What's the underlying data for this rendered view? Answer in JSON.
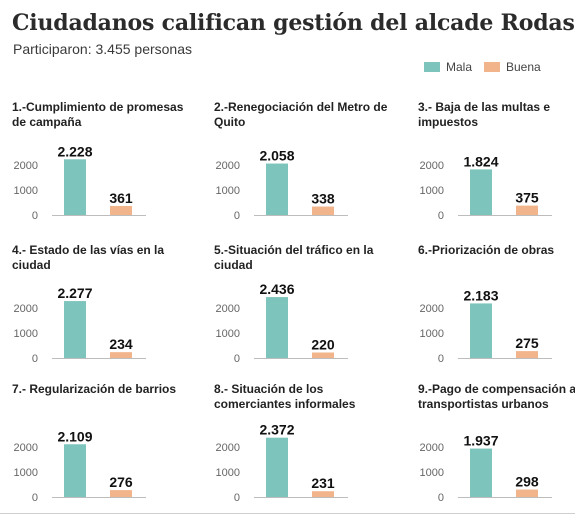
{
  "header": {
    "title": "Ciudadanos califican gestión del alcade Rodas",
    "subtitle": "Participaron: 3.455 personas"
  },
  "legend": [
    {
      "label": "Mala",
      "color": "#7cc4bc"
    },
    {
      "label": "Buena",
      "color": "#f2b48a"
    }
  ],
  "chart_data": {
    "type": "bar",
    "series": [
      {
        "name": "Mala",
        "color": "#7cc4bc"
      },
      {
        "name": "Buena",
        "color": "#f2b48a"
      }
    ],
    "ylim": [
      0,
      2500
    ],
    "yticks": [
      0,
      1000,
      2000
    ],
    "panels": [
      {
        "title": "1.-Cumplimiento de promesas de campaña",
        "values": [
          2228,
          361
        ],
        "labels": [
          "2.228",
          "361"
        ]
      },
      {
        "title": "2.-Renegociación del Metro de Quito",
        "values": [
          2058,
          338
        ],
        "labels": [
          "2.058",
          "338"
        ]
      },
      {
        "title": "3.- Baja de las multas e impuestos",
        "values": [
          1824,
          375
        ],
        "labels": [
          "1.824",
          "375"
        ]
      },
      {
        "title": "4.- Estado de las vías en la ciudad",
        "values": [
          2277,
          234
        ],
        "labels": [
          "2.277",
          "234"
        ]
      },
      {
        "title": "5.-Situación del tráfico en la ciudad",
        "values": [
          2436,
          220
        ],
        "labels": [
          "2.436",
          "220"
        ]
      },
      {
        "title": "6.-Priorización de obras",
        "values": [
          2183,
          275
        ],
        "labels": [
          "2.183",
          "275"
        ]
      },
      {
        "title": "7.- Regularización de barrios",
        "values": [
          2109,
          276
        ],
        "labels": [
          "2.109",
          "276"
        ]
      },
      {
        "title": "8.- Situación de los comerciantes informales",
        "values": [
          2372,
          231
        ],
        "labels": [
          "2.372",
          "231"
        ]
      },
      {
        "title": "9.-Pago de compensación a transportistas urbanos",
        "values": [
          1937,
          298
        ],
        "labels": [
          "1.937",
          "298"
        ]
      }
    ]
  }
}
